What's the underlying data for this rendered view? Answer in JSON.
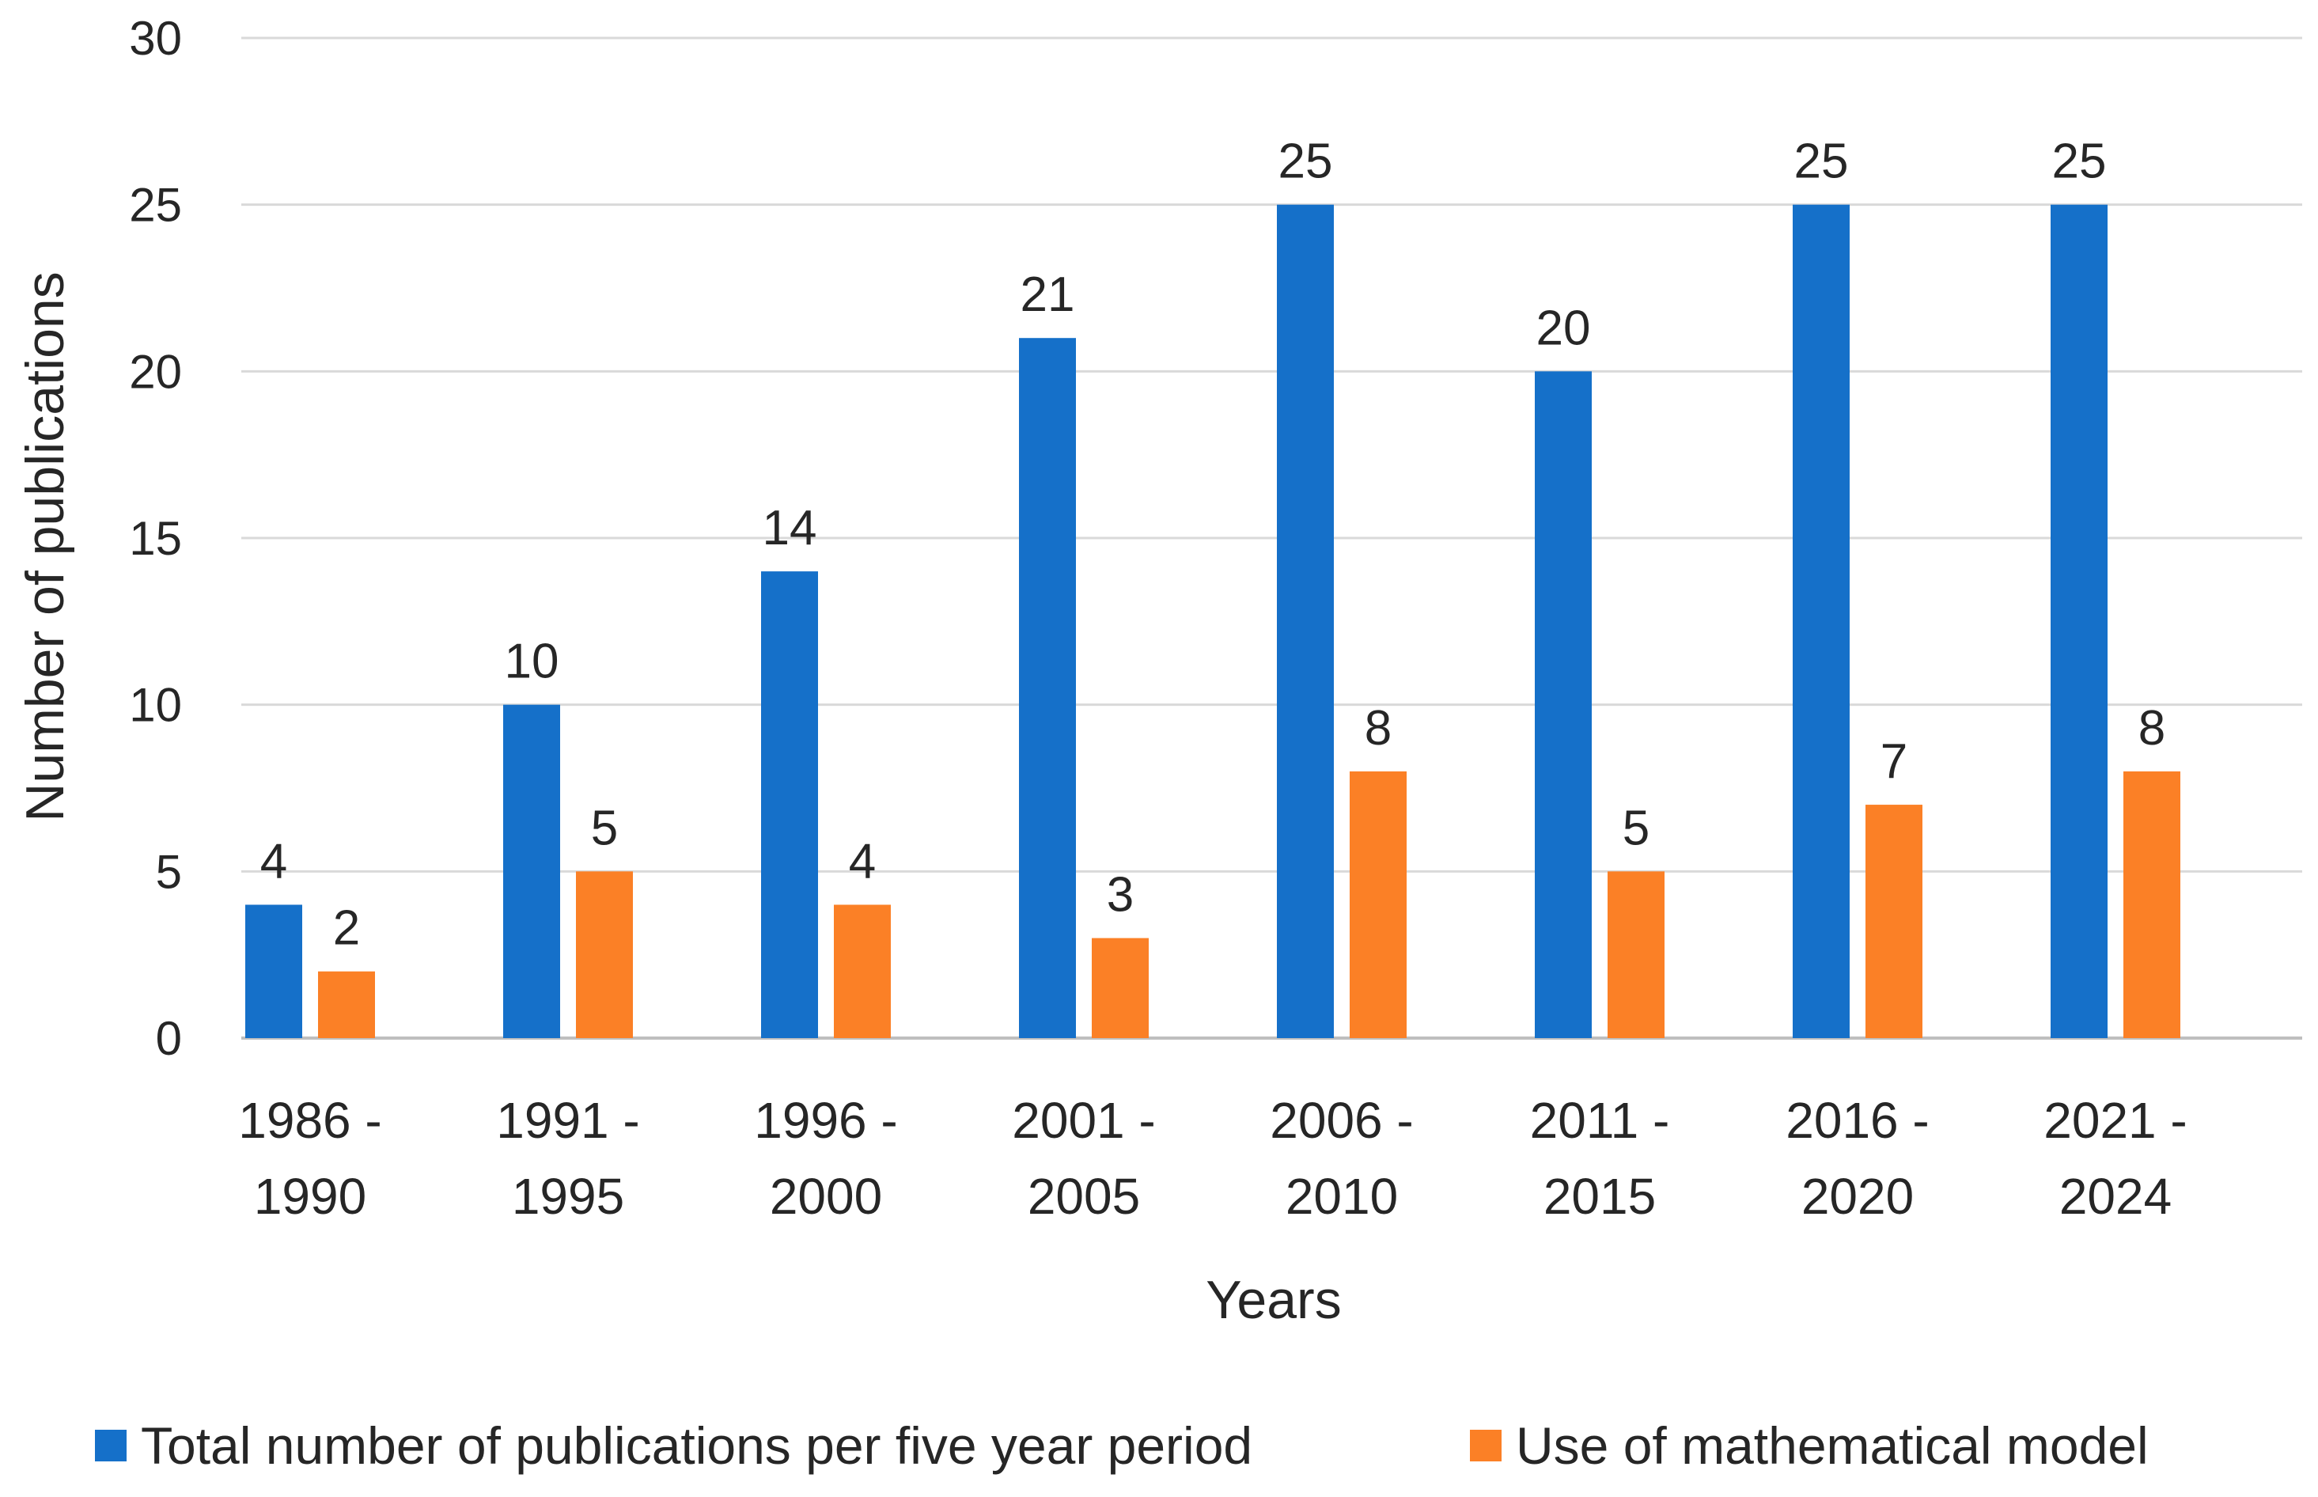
{
  "chart_data": {
    "type": "bar",
    "title": "",
    "xlabel": "Years",
    "ylabel": "Number of publications",
    "ylim": [
      0,
      30
    ],
    "yticks": [
      0,
      5,
      10,
      15,
      20,
      25,
      30
    ],
    "grid": true,
    "legend_position": "bottom",
    "categories": [
      [
        "1986 -",
        "1990"
      ],
      [
        "1991 -",
        "1995"
      ],
      [
        "1996 -",
        "2000"
      ],
      [
        "2001 -",
        "2005"
      ],
      [
        "2006 -",
        "2010"
      ],
      [
        "2011 -",
        "2015"
      ],
      [
        "2016 -",
        "2020"
      ],
      [
        "2021 -",
        "2024"
      ]
    ],
    "series": [
      {
        "name": "Total number of publications per five year period",
        "color": "#1570c9",
        "values": [
          4,
          10,
          14,
          21,
          25,
          20,
          25,
          25
        ]
      },
      {
        "name": "Use of mathematical model",
        "color": "#fb8026",
        "values": [
          2,
          5,
          4,
          3,
          8,
          5,
          7,
          8
        ]
      }
    ]
  }
}
